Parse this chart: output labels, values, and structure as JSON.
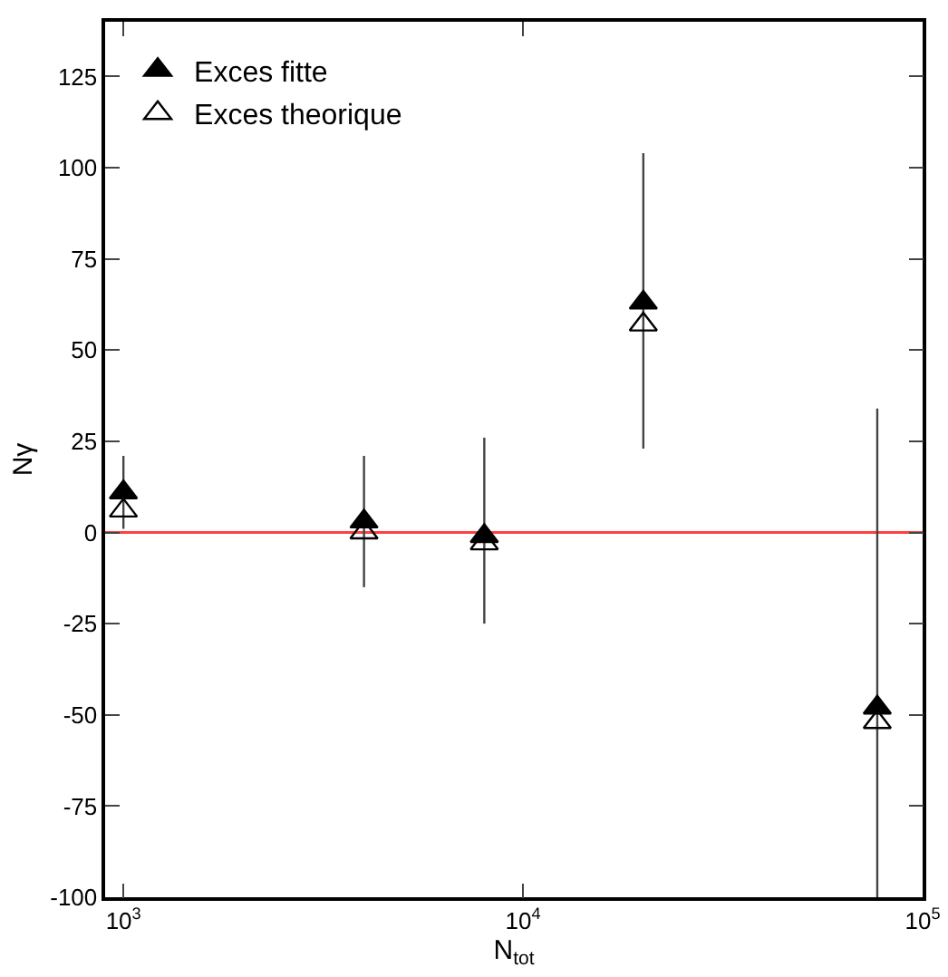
{
  "chart_data": {
    "type": "scatter",
    "xlabel": "N$_{tot}$",
    "ylabel": "Nγ",
    "log": "x",
    "x": [
      1000,
      4000,
      8000,
      20000,
      77000
    ],
    "series": [
      {
        "name": "Exces fitte",
        "color": "#000000",
        "marker": "triangle",
        "values": [
          11,
          3,
          -1,
          63,
          -48
        ],
        "errors": [
          [
            1,
            21
          ],
          [
            -15,
            21
          ],
          [
            -25,
            26
          ],
          [
            23,
            104
          ],
          [
            -100,
            34
          ]
        ]
      },
      {
        "name": "Exces theorique",
        "color": "#000000",
        "marker": "triangle",
        "values": [
          6,
          0,
          -3,
          57,
          -52
        ]
      }
    ],
    "xlim": [
      900,
      100000
    ],
    "xticks": [
      {
        "value": 1000,
        "label": "10$^{3}$"
      },
      {
        "value": 10000,
        "label": "10$^{4}$"
      },
      {
        "value": 100000,
        "label": "10$^{5}$"
      }
    ],
    "ylim": [
      -100,
      140
    ],
    "yticks": [
      -100,
      -75,
      -50,
      -25,
      0,
      25,
      50,
      75,
      100,
      125
    ],
    "ref_lines": [
      {
        "axis": "y",
        "value": 0,
        "color": "#ff4040"
      }
    ],
    "grid": false,
    "legend": "top left"
  }
}
